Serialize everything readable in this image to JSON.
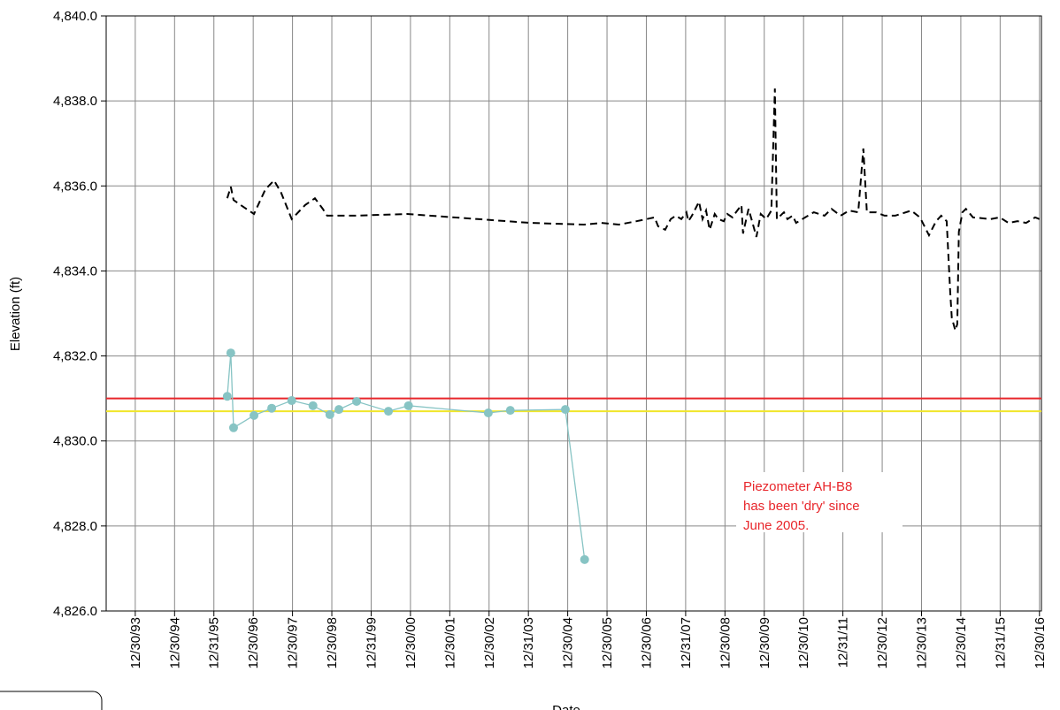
{
  "chart_data": {
    "type": "line",
    "y_label": "Elevation (ft)",
    "x_label": "Date",
    "annotation": [
      "Piezometer AH-B8",
      "has been 'dry' since",
      "June 2005."
    ],
    "annotation_color": "#e8262b",
    "xlim": [
      1993.26,
      2017.05
    ],
    "ylim": [
      4826.0,
      4840.0
    ],
    "grid": true,
    "yticks": [
      {
        "value": 4826,
        "label": "4,826.0"
      },
      {
        "value": 4828,
        "label": "4,828.0"
      },
      {
        "value": 4830,
        "label": "4,830.0"
      },
      {
        "value": 4832,
        "label": "4,832.0"
      },
      {
        "value": 4834,
        "label": "4,834.0"
      },
      {
        "value": 4836,
        "label": "4,836.0"
      },
      {
        "value": 4838,
        "label": "4,838.0"
      },
      {
        "value": 4840,
        "label": "4,840.0"
      }
    ],
    "xticks": [
      {
        "value": 1994,
        "label": "12/30/93"
      },
      {
        "value": 1995,
        "label": "12/30/94"
      },
      {
        "value": 1996,
        "label": "12/31/95"
      },
      {
        "value": 1997,
        "label": "12/30/96"
      },
      {
        "value": 1998,
        "label": "12/30/97"
      },
      {
        "value": 1999,
        "label": "12/30/98"
      },
      {
        "value": 2000,
        "label": "12/31/99"
      },
      {
        "value": 2001,
        "label": "12/30/00"
      },
      {
        "value": 2002,
        "label": "12/30/01"
      },
      {
        "value": 2003,
        "label": "12/30/02"
      },
      {
        "value": 2004,
        "label": "12/31/03"
      },
      {
        "value": 2005,
        "label": "12/30/04"
      },
      {
        "value": 2006,
        "label": "12/30/05"
      },
      {
        "value": 2007,
        "label": "12/30/06"
      },
      {
        "value": 2008,
        "label": "12/31/07"
      },
      {
        "value": 2009,
        "label": "12/30/08"
      },
      {
        "value": 2010,
        "label": "12/30/09"
      },
      {
        "value": 2011,
        "label": "12/30/10"
      },
      {
        "value": 2012,
        "label": "12/31/11"
      },
      {
        "value": 2013,
        "label": "12/30/12"
      },
      {
        "value": 2014,
        "label": "12/30/13"
      },
      {
        "value": 2015,
        "label": "12/30/14"
      },
      {
        "value": 2016,
        "label": "12/31/15"
      },
      {
        "value": 2017,
        "label": "12/30/16"
      }
    ],
    "hlines": [
      {
        "value": 4831.0,
        "color": "#e8262b"
      },
      {
        "value": 4830.7,
        "color": "#f0e62a"
      }
    ],
    "series": [
      {
        "color": "#000000",
        "dashed": true,
        "markers": false,
        "x": [
          1996.34,
          1996.43,
          1996.5,
          1996.68,
          1997.02,
          1997.31,
          1997.53,
          1997.71,
          1997.98,
          1998.32,
          1998.57,
          1998.77,
          1998.88,
          1999.56,
          2000.91,
          2002.71,
          2004.06,
          2005.41,
          2005.86,
          2006.3,
          2006.75,
          2007.21,
          2007.3,
          2007.48,
          2007.62,
          2007.75,
          2007.89,
          2008.02,
          2008.07,
          2008.16,
          2008.34,
          2008.43,
          2008.52,
          2008.61,
          2008.74,
          2008.83,
          2008.97,
          2009.06,
          2009.19,
          2009.28,
          2009.42,
          2009.46,
          2009.6,
          2009.69,
          2009.8,
          2009.91,
          2010.05,
          2010.18,
          2010.27,
          2010.32,
          2010.5,
          2010.59,
          2010.72,
          2010.81,
          2011.04,
          2011.26,
          2011.53,
          2011.71,
          2011.94,
          2012.16,
          2012.39,
          2012.52,
          2012.61,
          2012.84,
          2013.06,
          2013.33,
          2013.74,
          2013.96,
          2014.19,
          2014.37,
          2014.5,
          2014.64,
          2014.73,
          2014.77,
          2014.86,
          2014.91,
          2014.95,
          2015.04,
          2015.13,
          2015.31,
          2015.76,
          2015.99,
          2016.21,
          2016.44,
          2016.66,
          2016.89,
          2017.0
        ],
        "values": [
          4835.71,
          4835.98,
          4835.67,
          4835.55,
          4835.34,
          4835.92,
          4836.13,
          4835.84,
          4835.22,
          4835.55,
          4835.71,
          4835.46,
          4835.3,
          4835.3,
          4835.34,
          4835.22,
          4835.13,
          4835.09,
          4835.13,
          4835.09,
          4835.17,
          4835.26,
          4835.05,
          4834.97,
          4835.22,
          4835.3,
          4835.22,
          4835.38,
          4835.17,
          4835.3,
          4835.63,
          4835.22,
          4835.42,
          4834.97,
          4835.34,
          4835.22,
          4835.17,
          4835.34,
          4835.26,
          4835.38,
          4835.55,
          4834.88,
          4835.46,
          4835.17,
          4834.8,
          4835.34,
          4835.22,
          4835.42,
          4838.29,
          4835.22,
          4835.38,
          4835.22,
          4835.3,
          4835.13,
          4835.26,
          4835.38,
          4835.3,
          4835.46,
          4835.3,
          4835.42,
          4835.38,
          4836.88,
          4835.38,
          4835.38,
          4835.3,
          4835.3,
          4835.42,
          4835.26,
          4834.84,
          4835.17,
          4835.3,
          4835.17,
          4833.5,
          4832.9,
          4832.6,
          4832.75,
          4834.92,
          4835.38,
          4835.46,
          4835.26,
          4835.22,
          4835.26,
          4835.13,
          4835.17,
          4835.13,
          4835.26,
          4835.22
        ]
      },
      {
        "color": "#87c4c4",
        "dashed": false,
        "markers": true,
        "x": [
          1996.34,
          1996.43,
          1996.5,
          1997.02,
          1997.47,
          1997.98,
          1998.52,
          1998.95,
          1999.18,
          1999.63,
          2000.44,
          2000.95,
          2002.98,
          2003.54,
          2004.94,
          2005.43
        ],
        "values": [
          4831.05,
          4832.07,
          4830.31,
          4830.6,
          4830.77,
          4830.95,
          4830.83,
          4830.62,
          4830.74,
          4830.93,
          4830.7,
          4830.83,
          4830.66,
          4830.72,
          4830.74,
          4827.21
        ]
      }
    ]
  }
}
